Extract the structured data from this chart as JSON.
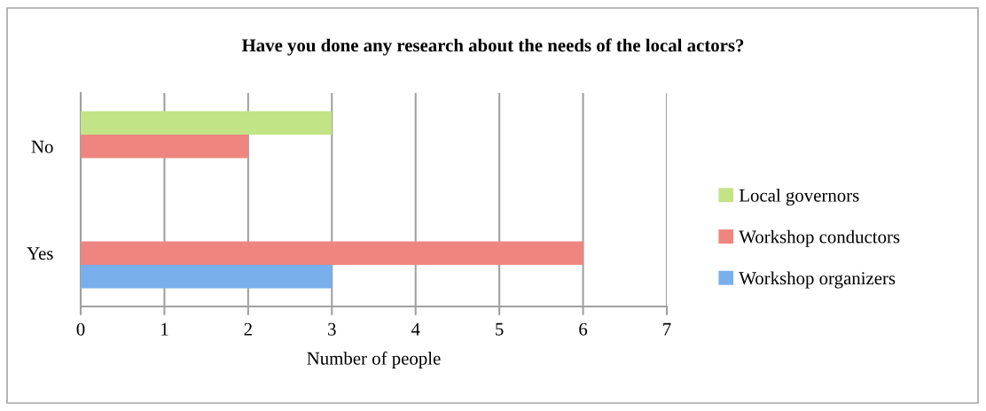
{
  "chart_data": {
    "type": "bar",
    "orientation": "horizontal",
    "title": "Have you done any research about the needs of the local actors?",
    "xlabel": "Number of people",
    "categories": [
      "No",
      "Yes"
    ],
    "series": [
      {
        "name": "Local governors",
        "color": "#c3e387",
        "values": [
          3,
          null
        ]
      },
      {
        "name": "Workshop conductors",
        "color": "#ef8580",
        "values": [
          2,
          6
        ]
      },
      {
        "name": "Workshop organizers",
        "color": "#79afeb",
        "values": [
          null,
          3
        ]
      }
    ],
    "xlim": [
      0,
      7
    ],
    "xticks": [
      0,
      1,
      2,
      3,
      4,
      5,
      6,
      7
    ],
    "grid": "x",
    "legend": "right"
  }
}
